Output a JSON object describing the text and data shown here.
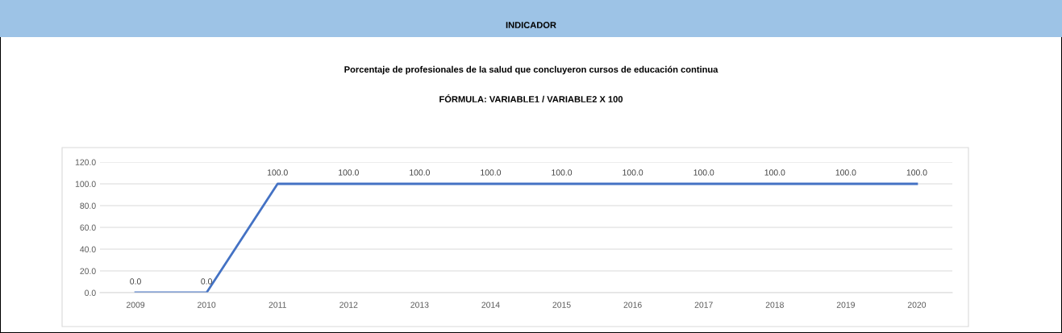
{
  "chart_data": {
    "type": "line",
    "title": "INDICADOR",
    "subtitle": "Porcentaje de profesionales de la salud que concluyeron cursos de educación continua",
    "annotations": [
      "FÓRMULA: VARIABLE1 / VARIABLE2 X 100"
    ],
    "categories": [
      "2009",
      "2010",
      "2011",
      "2012",
      "2013",
      "2014",
      "2015",
      "2016",
      "2017",
      "2018",
      "2019",
      "2020"
    ],
    "series": [
      {
        "color": "#4472c4",
        "values": [
          0,
          0,
          100,
          100,
          100,
          100,
          100,
          100,
          100,
          100,
          100,
          100
        ],
        "value_labels": [
          "0.0",
          "0.0",
          "100.0",
          "100.0",
          "100.0",
          "100.0",
          "100.0",
          "100.0",
          "100.0",
          "100.0",
          "100.0",
          "100.0"
        ]
      }
    ],
    "ylim": [
      0,
      120
    ],
    "yticks": [
      {
        "value": 0,
        "label": "0.0"
      },
      {
        "value": 20,
        "label": "20.0"
      },
      {
        "value": 40,
        "label": "40.0"
      },
      {
        "value": 60,
        "label": "60.0"
      },
      {
        "value": 80,
        "label": "80.0"
      },
      {
        "value": 100,
        "label": "100.0"
      },
      {
        "value": 120,
        "label": "120.0"
      }
    ],
    "grid": "y",
    "marker": "none",
    "line_style": "solid"
  }
}
